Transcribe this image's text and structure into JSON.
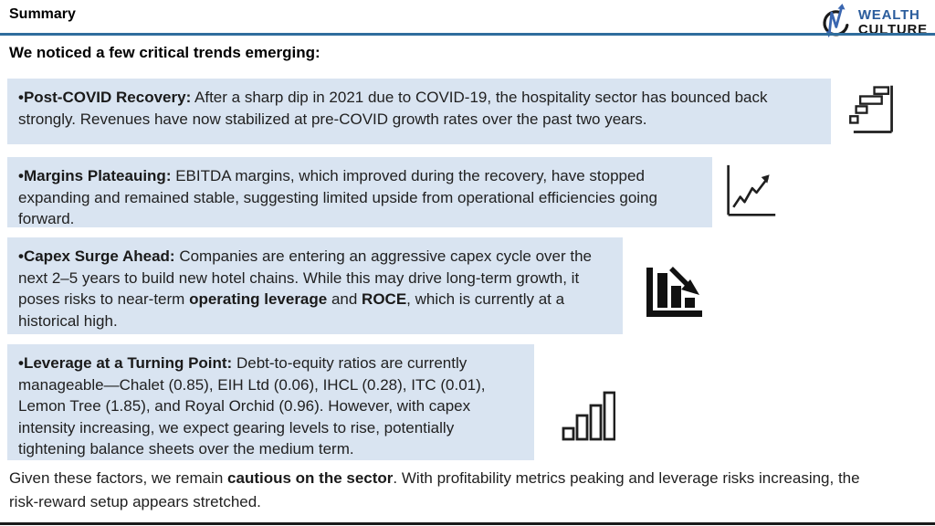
{
  "header": {
    "title": "Summary",
    "brand": {
      "line1": "WEALTH",
      "line2": "CULTURE"
    }
  },
  "intro": "We noticed a few critical trends emerging:",
  "blocks": [
    {
      "icon": "waterfall-chart-icon",
      "segments": [
        {
          "t": "•Post-COVID Recovery:",
          "b": true
        },
        {
          "t": " After a sharp dip in 2021 due to COVID-19, the hospitality sector has bounced back strongly. Revenues have now stabilized at pre-COVID growth rates over the past two years.",
          "b": false
        }
      ]
    },
    {
      "icon": "line-chart-up-icon",
      "segments": [
        {
          "t": "•Margins Plateauing:",
          "b": true
        },
        {
          "t": " EBITDA margins, which improved during the recovery, have stopped expanding and remained stable, suggesting limited upside from operational efficiencies going forward.",
          "b": false
        }
      ]
    },
    {
      "icon": "declining-bar-chart-icon",
      "segments": [
        {
          "t": "•Capex Surge Ahead:",
          "b": true
        },
        {
          "t": " Companies are entering an aggressive capex cycle over the next 2–5 years to build new hotel chains. While this may drive long-term growth, it poses risks to near-term ",
          "b": false
        },
        {
          "t": "operating leverage",
          "b": true
        },
        {
          "t": " and ",
          "b": false
        },
        {
          "t": "ROCE",
          "b": true
        },
        {
          "t": ", which is currently at a historical high.",
          "b": false
        }
      ]
    },
    {
      "icon": "ascending-bars-icon",
      "segments": [
        {
          "t": "•Leverage at a Turning Point:",
          "b": true
        },
        {
          "t": " Debt-to-equity ratios are currently manageable—Chalet (0.85), EIH Ltd (0.06), IHCL (0.28), ITC (0.01), Lemon Tree (1.85), and Royal Orchid (0.96). However, with capex intensity increasing, we expect gearing levels to rise, potentially tightening balance sheets over the medium term.",
          "b": false
        }
      ]
    }
  ],
  "footer": {
    "segments": [
      {
        "t": "Given these factors, we remain ",
        "b": false
      },
      {
        "t": "cautious on the sector",
        "b": true
      },
      {
        "t": ". With profitability metrics peaking and leverage risks increasing, the risk-reward setup appears stretched.",
        "b": false
      }
    ]
  },
  "colors": {
    "highlight_bg": "#d9e4f1",
    "header_rule": "#2f6d9d",
    "bottom_rule": "#1a1a1a",
    "brand_blue": "#2a5c9c",
    "logo_arrow_blue": "#3a66b0",
    "icon_ink": "#1f1f1f"
  }
}
